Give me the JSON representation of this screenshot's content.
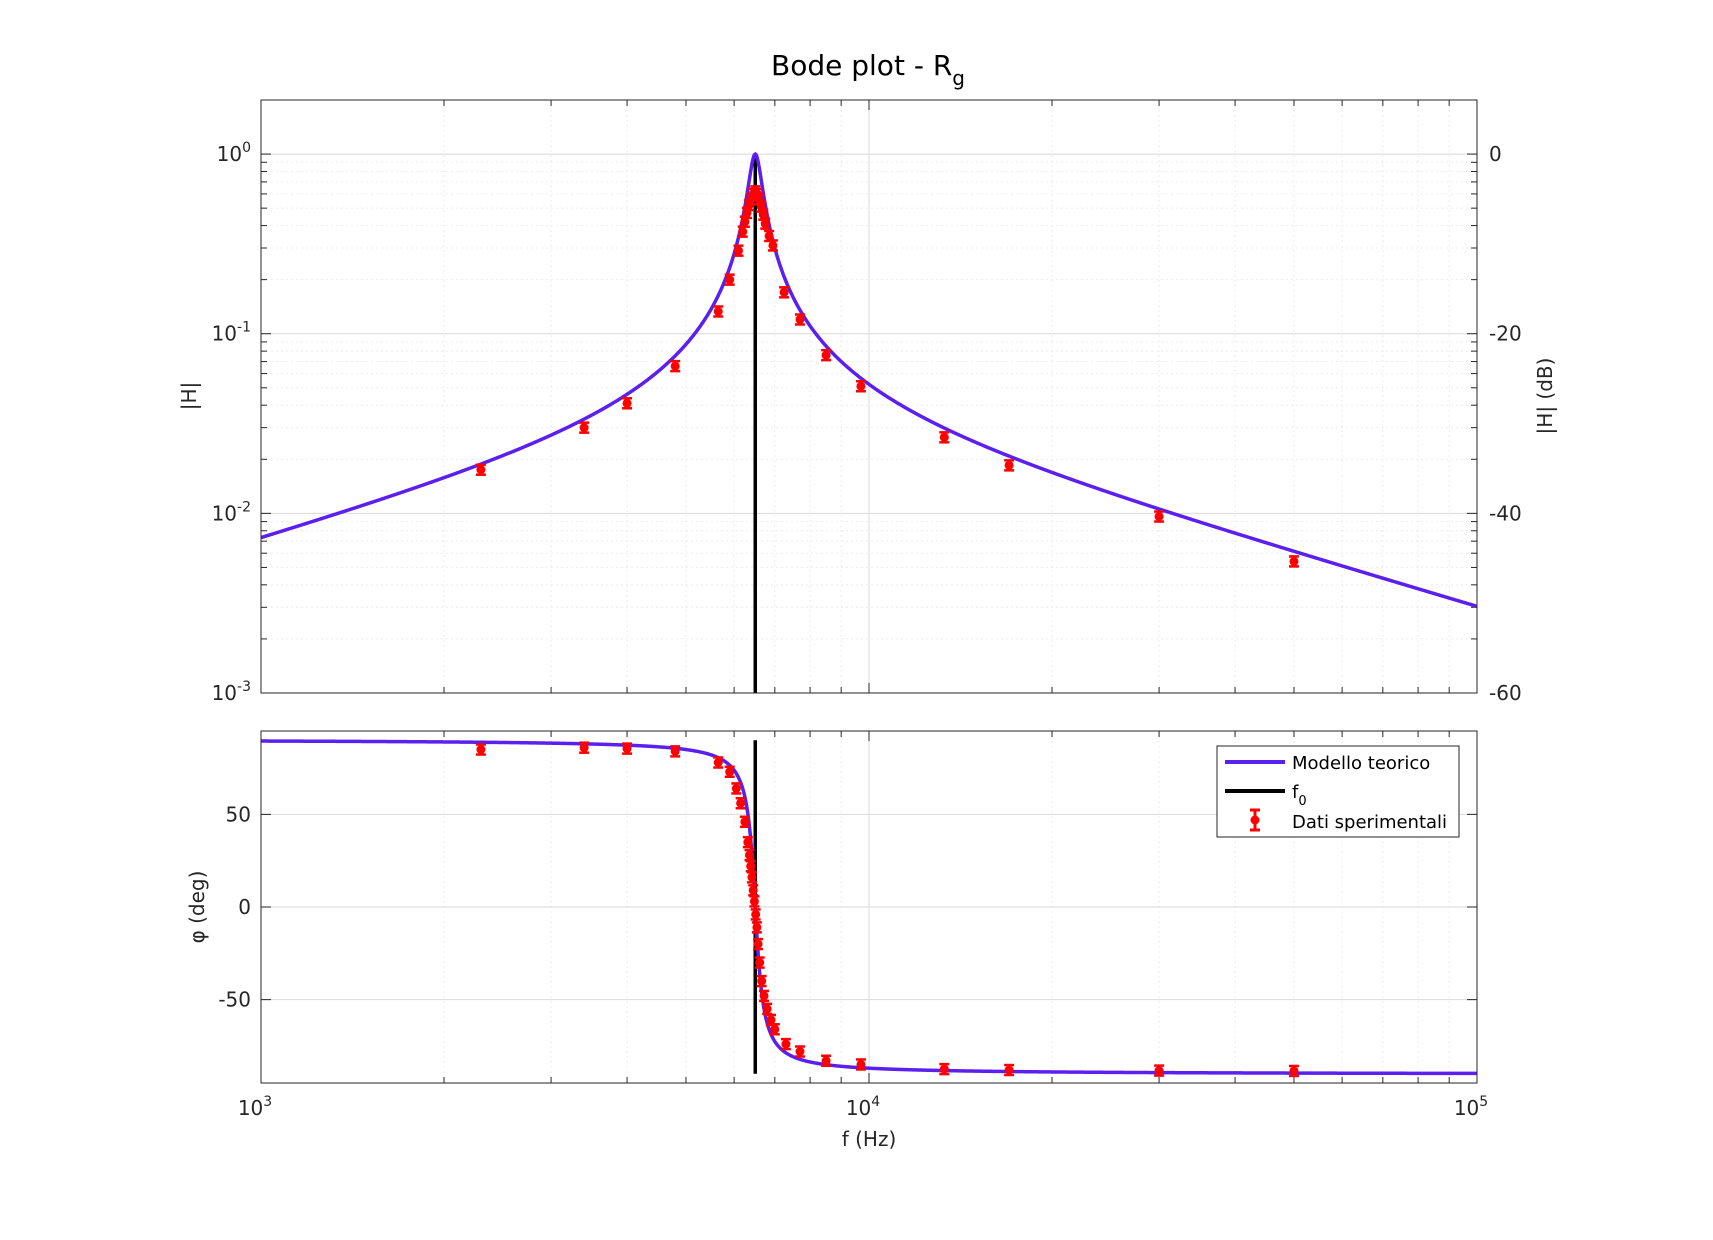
{
  "chart_data": [
    {
      "panel": "magnitude",
      "type": "line",
      "title": "Bode plot - R",
      "title_subscript": "g",
      "xlabel": "",
      "ylabel": "|H|",
      "ylabel_right": "|H| (dB)",
      "xscale": "log",
      "yscale": "log",
      "xlim": [
        1000,
        100000
      ],
      "ylim": [
        0.001,
        2
      ],
      "ylim_right": [
        -60,
        6
      ],
      "yticks": [
        {
          "value": 1,
          "base": "10",
          "exp": "0"
        },
        {
          "value": 0.1,
          "base": "10",
          "exp": "-1"
        },
        {
          "value": 0.01,
          "base": "10",
          "exp": "-2"
        },
        {
          "value": 0.001,
          "base": "10",
          "exp": "-3"
        }
      ],
      "yticks_right": [
        "0",
        "-20",
        "-40",
        "-60"
      ],
      "grid": true,
      "f0": 6500,
      "series": [
        {
          "name": "Modello teorico",
          "kind": "line",
          "color": "#5b1ff0",
          "model": {
            "f0": 6500,
            "Q": 21.5,
            "peak": 1.0
          }
        },
        {
          "name": "Dati sperimentali",
          "kind": "errorbar",
          "color": "#ff0000",
          "points": [
            {
              "x": 2300,
              "y": 0.0175
            },
            {
              "x": 3400,
              "y": 0.03
            },
            {
              "x": 4000,
              "y": 0.041
            },
            {
              "x": 4800,
              "y": 0.066
            },
            {
              "x": 5650,
              "y": 0.133
            },
            {
              "x": 5900,
              "y": 0.2
            },
            {
              "x": 6100,
              "y": 0.29
            },
            {
              "x": 6200,
              "y": 0.37
            },
            {
              "x": 6250,
              "y": 0.42
            },
            {
              "x": 6300,
              "y": 0.47
            },
            {
              "x": 6350,
              "y": 0.52
            },
            {
              "x": 6400,
              "y": 0.56
            },
            {
              "x": 6450,
              "y": 0.6
            },
            {
              "x": 6500,
              "y": 0.62
            },
            {
              "x": 6550,
              "y": 0.6
            },
            {
              "x": 6600,
              "y": 0.56
            },
            {
              "x": 6650,
              "y": 0.51
            },
            {
              "x": 6700,
              "y": 0.46
            },
            {
              "x": 6750,
              "y": 0.41
            },
            {
              "x": 6850,
              "y": 0.35
            },
            {
              "x": 6950,
              "y": 0.31
            },
            {
              "x": 7250,
              "y": 0.17
            },
            {
              "x": 7700,
              "y": 0.12
            },
            {
              "x": 8500,
              "y": 0.076
            },
            {
              "x": 9700,
              "y": 0.051
            },
            {
              "x": 13300,
              "y": 0.0265
            },
            {
              "x": 17000,
              "y": 0.0185
            },
            {
              "x": 30000,
              "y": 0.0096
            },
            {
              "x": 50000,
              "y": 0.0054
            }
          ]
        },
        {
          "name": "f",
          "name_subscript": "0",
          "kind": "vline",
          "color": "#000000",
          "x": 6500
        }
      ]
    },
    {
      "panel": "phase",
      "type": "line",
      "xlabel": "f (Hz)",
      "ylabel": "φ (deg)",
      "xscale": "log",
      "xlim": [
        1000,
        100000
      ],
      "ylim": [
        -95,
        95
      ],
      "xticks": [
        {
          "value": 1000,
          "base": "10",
          "exp": "3"
        },
        {
          "value": 10000,
          "base": "10",
          "exp": "4"
        },
        {
          "value": 100000,
          "base": "10",
          "exp": "5"
        }
      ],
      "yticks": [
        "50",
        "0",
        "-50"
      ],
      "ytick_values": [
        50,
        0,
        -50
      ],
      "grid": true,
      "f0": 6500,
      "legend": {
        "placement": "top-right",
        "entries": [
          {
            "label": "Modello teorico",
            "sub": ""
          },
          {
            "label": "f",
            "sub": "0"
          },
          {
            "label": "Dati sperimentali",
            "sub": ""
          }
        ]
      },
      "series": [
        {
          "name": "Modello teorico",
          "kind": "line",
          "color": "#5b1ff0",
          "model": {
            "f0": 6500,
            "Q": 21.5
          }
        },
        {
          "name": "Dati sperimentali",
          "kind": "errorbar",
          "color": "#ff0000",
          "points": [
            {
              "x": 2300,
              "y": 85
            },
            {
              "x": 3400,
              "y": 86
            },
            {
              "x": 4000,
              "y": 85.5
            },
            {
              "x": 4800,
              "y": 84
            },
            {
              "x": 5650,
              "y": 78
            },
            {
              "x": 5900,
              "y": 73
            },
            {
              "x": 6050,
              "y": 64
            },
            {
              "x": 6150,
              "y": 56
            },
            {
              "x": 6250,
              "y": 46
            },
            {
              "x": 6320,
              "y": 35
            },
            {
              "x": 6360,
              "y": 28
            },
            {
              "x": 6390,
              "y": 22
            },
            {
              "x": 6420,
              "y": 16
            },
            {
              "x": 6450,
              "y": 9
            },
            {
              "x": 6480,
              "y": 3
            },
            {
              "x": 6510,
              "y": -4
            },
            {
              "x": 6540,
              "y": -11
            },
            {
              "x": 6570,
              "y": -20
            },
            {
              "x": 6610,
              "y": -30
            },
            {
              "x": 6660,
              "y": -40
            },
            {
              "x": 6720,
              "y": -48
            },
            {
              "x": 6800,
              "y": -55
            },
            {
              "x": 6900,
              "y": -61
            },
            {
              "x": 7000,
              "y": -66
            },
            {
              "x": 7300,
              "y": -74
            },
            {
              "x": 7700,
              "y": -78
            },
            {
              "x": 8500,
              "y": -83
            },
            {
              "x": 9700,
              "y": -85
            },
            {
              "x": 13300,
              "y": -87.5
            },
            {
              "x": 17000,
              "y": -88
            },
            {
              "x": 30000,
              "y": -88.3
            },
            {
              "x": 50000,
              "y": -88.5
            }
          ]
        },
        {
          "name": "f",
          "name_subscript": "0",
          "kind": "vline",
          "color": "#000000",
          "x": 6500,
          "y_range": [
            -90,
            90
          ]
        }
      ]
    }
  ]
}
